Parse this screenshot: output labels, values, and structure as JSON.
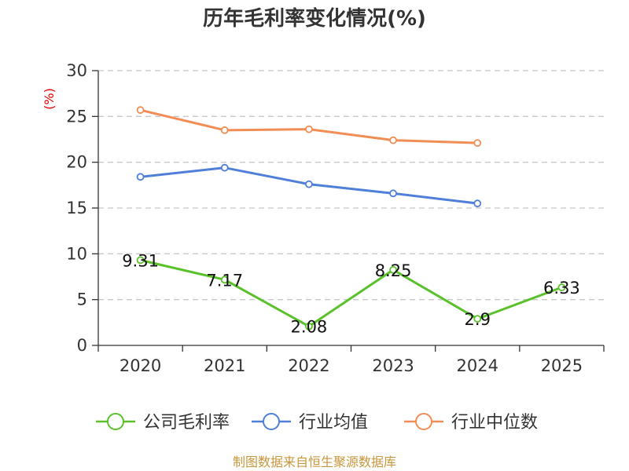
{
  "chart_data": {
    "type": "line",
    "title": "历年毛利率变化情况(%)",
    "ylabel": "(%)",
    "categories": [
      "2020",
      "2021",
      "2022",
      "2023",
      "2024",
      "2025"
    ],
    "ylim": [
      0,
      30
    ],
    "yticks": [
      0,
      5,
      10,
      15,
      20,
      25,
      30
    ],
    "grid": true,
    "legend_position": "bottom",
    "series": [
      {
        "name": "公司毛利率",
        "color": "#5ac12a",
        "values": [
          9.31,
          7.17,
          2.08,
          8.25,
          2.9,
          6.33
        ],
        "labels": [
          "9.31",
          "7.17",
          "2.08",
          "8.25",
          "2.9",
          "6.33"
        ]
      },
      {
        "name": "行业均值",
        "color": "#4f7fd8",
        "values": [
          18.4,
          19.4,
          17.6,
          16.6,
          15.5,
          null
        ]
      },
      {
        "name": "行业中位数",
        "color": "#f28e55",
        "values": [
          25.7,
          23.5,
          23.6,
          22.4,
          22.1,
          null
        ]
      }
    ]
  },
  "footer": {
    "source": "制图数据来自恒生聚源数据库"
  }
}
